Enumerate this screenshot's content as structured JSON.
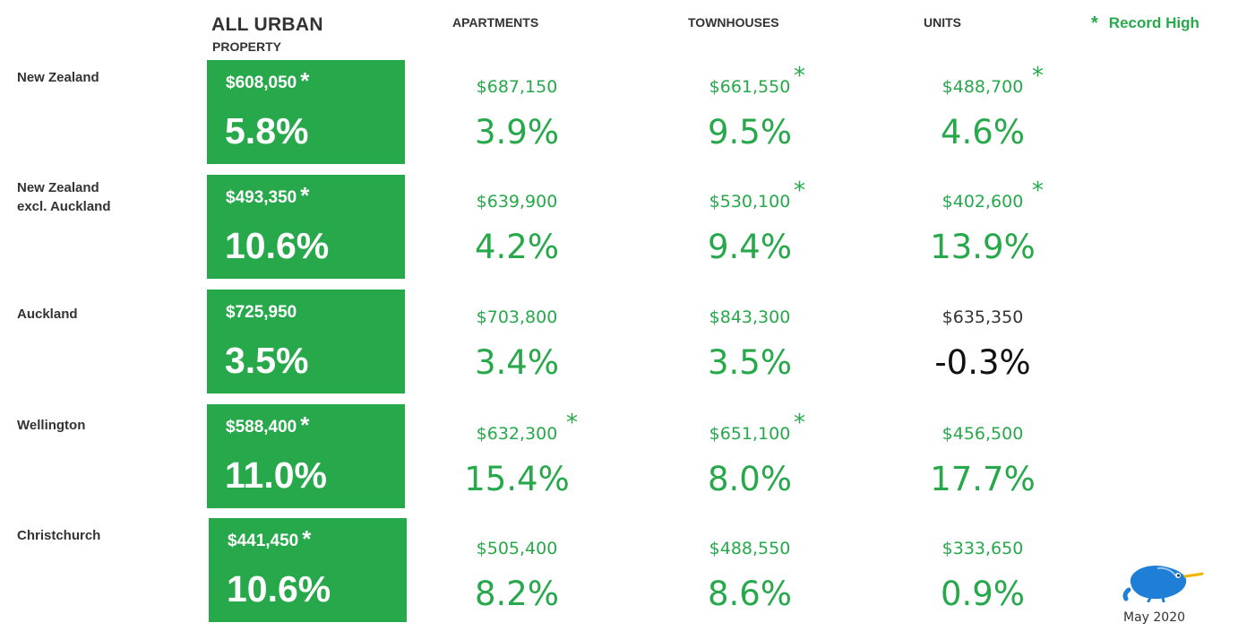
{
  "header": {
    "title": "ALL URBAN",
    "subtitle": "PROPERTY",
    "columns": [
      "APARTMENTS",
      "TOWNHOUSES",
      "UNITS"
    ],
    "legend_symbol": "*",
    "legend_label": "Record High"
  },
  "rows": [
    {
      "region_lines": [
        "New Zealand"
      ],
      "all": {
        "price": "$608,050",
        "pct": "5.8%",
        "record": "*"
      },
      "apartments": {
        "price": "$687,150",
        "pct": "3.9%",
        "record": ""
      },
      "townhouses": {
        "price": "$661,550",
        "pct": "9.5%",
        "record": "*"
      },
      "units": {
        "price": "$488,700",
        "pct": "4.6%",
        "record": "*"
      }
    },
    {
      "region_lines": [
        "New Zealand",
        "excl. Auckland"
      ],
      "all": {
        "price": "$493,350",
        "pct": "10.6%",
        "record": "*"
      },
      "apartments": {
        "price": "$639,900",
        "pct": "4.2%",
        "record": ""
      },
      "townhouses": {
        "price": "$530,100",
        "pct": "9.4%",
        "record": "*"
      },
      "units": {
        "price": "$402,600",
        "pct": "13.9%",
        "record": "*"
      }
    },
    {
      "region_lines": [
        "Auckland"
      ],
      "all": {
        "price": "$725,950",
        "pct": "3.5%",
        "record": ""
      },
      "apartments": {
        "price": "$703,800",
        "pct": "3.4%",
        "record": ""
      },
      "townhouses": {
        "price": "$843,300",
        "pct": "3.5%",
        "record": ""
      },
      "units": {
        "price": "$635,350",
        "pct": "-0.3%",
        "record": ""
      }
    },
    {
      "region_lines": [
        "Wellington"
      ],
      "all": {
        "price": "$588,400",
        "pct": "11.0%",
        "record": "*"
      },
      "apartments": {
        "price": "$632,300",
        "pct": "15.4%",
        "record": "*"
      },
      "townhouses": {
        "price": "$651,100",
        "pct": "8.0%",
        "record": "*"
      },
      "units": {
        "price": "$456,500",
        "pct": "17.7%",
        "record": ""
      }
    },
    {
      "region_lines": [
        "Christchurch"
      ],
      "all": {
        "price": "$441,450",
        "pct": "10.6%",
        "record": "*"
      },
      "apartments": {
        "price": "$505,400",
        "pct": "8.2%",
        "record": ""
      },
      "townhouses": {
        "price": "$488,550",
        "pct": "8.6%",
        "record": ""
      },
      "units": {
        "price": "$333,650",
        "pct": "0.9%",
        "record": ""
      }
    }
  ],
  "footer": {
    "logo_icon": "kiwi-bird-icon",
    "date": "May 2020"
  },
  "colors": {
    "accent_green": "#27a84a",
    "negative": "#111111",
    "logo_blue": "#1f7fd6",
    "logo_beak": "#f0b400"
  }
}
